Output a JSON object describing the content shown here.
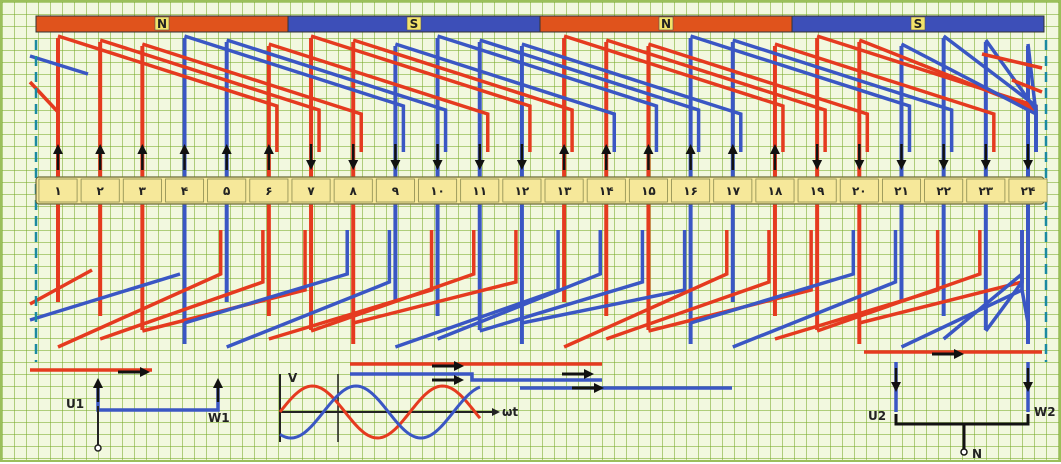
{
  "poles": [
    {
      "label": "N",
      "color": "#e0531c"
    },
    {
      "label": "S",
      "color": "#3d4fb8"
    },
    {
      "label": "N",
      "color": "#e0531c"
    },
    {
      "label": "S",
      "color": "#3d4fb8"
    }
  ],
  "slots": [
    "۱",
    "۲",
    "۳",
    "۴",
    "۵",
    "۶",
    "۷",
    "۸",
    "۹",
    "۱۰",
    "۱۱",
    "۱۲",
    "۱۳",
    "۱۴",
    "۱۵",
    "۱۶",
    "۱۷",
    "۱۸",
    "۱۹",
    "۲۰",
    "۲۱",
    "۲۲",
    "۲۳",
    "۲۴"
  ],
  "slot_arrow_up": [
    true,
    true,
    true,
    true,
    true,
    true,
    false,
    false,
    false,
    false,
    false,
    false,
    true,
    true,
    true,
    true,
    true,
    true,
    false,
    false,
    false,
    false,
    false,
    false
  ],
  "terminals": {
    "u1": "U1",
    "w1": "W1",
    "u2": "U2",
    "w2": "W2",
    "star_point": "N"
  },
  "waveform": {
    "y_label": "V",
    "x_label": "ωt"
  },
  "colors": {
    "phase_red": "#e53a1f",
    "phase_blue": "#3a56c4",
    "slot_fill": "#f6e89a",
    "grid": "#9bc84a"
  }
}
